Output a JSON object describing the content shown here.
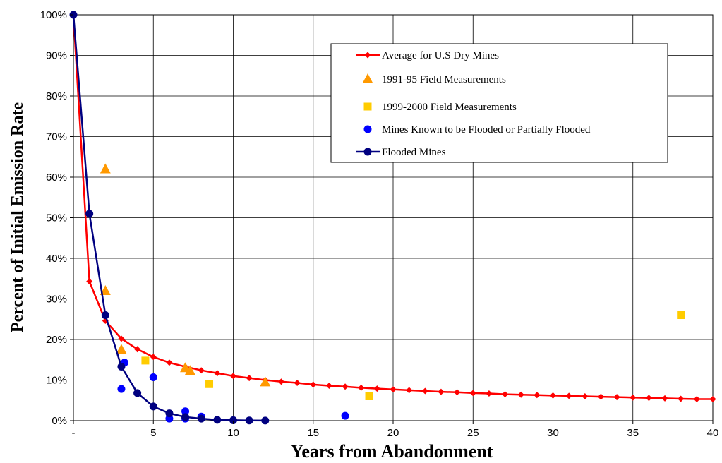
{
  "chart_data": {
    "type": "scatter",
    "xlabel": "Years from Abandonment",
    "ylabel": "Percent of Initial Emission Rate",
    "xlim": [
      0,
      40
    ],
    "ylim": [
      0,
      100
    ],
    "x_ticks": [
      0,
      5,
      10,
      15,
      20,
      25,
      30,
      35,
      40
    ],
    "x_tick_labels": [
      "-",
      "5",
      "10",
      "15",
      "20",
      "25",
      "30",
      "35",
      "40"
    ],
    "y_ticks": [
      0,
      10,
      20,
      30,
      40,
      50,
      60,
      70,
      80,
      90,
      100
    ],
    "y_tick_labels": [
      "0%",
      "10%",
      "20%",
      "30%",
      "40%",
      "50%",
      "60%",
      "70%",
      "80%",
      "90%",
      "100%"
    ],
    "grid": true,
    "legend_position": "top-right",
    "series": [
      {
        "name": "Average for U.S Dry Mines",
        "kind": "line",
        "marker": "diamond",
        "color": "#ff0000",
        "x": [
          0,
          1,
          2,
          3,
          4,
          5,
          6,
          7,
          8,
          9,
          10,
          11,
          12,
          13,
          14,
          15,
          16,
          17,
          18,
          19,
          20,
          21,
          22,
          23,
          24,
          25,
          26,
          27,
          28,
          29,
          30,
          31,
          32,
          33,
          34,
          35,
          36,
          37,
          38,
          39,
          40
        ],
        "y": [
          100,
          34.3,
          24.6,
          20.2,
          17.6,
          15.7,
          14.3,
          13.3,
          12.4,
          11.7,
          11.0,
          10.5,
          10.0,
          9.6,
          9.3,
          8.9,
          8.6,
          8.4,
          8.1,
          7.9,
          7.7,
          7.5,
          7.3,
          7.1,
          7.0,
          6.8,
          6.7,
          6.5,
          6.4,
          6.3,
          6.2,
          6.1,
          6.0,
          5.9,
          5.8,
          5.7,
          5.6,
          5.5,
          5.4,
          5.3,
          5.3
        ]
      },
      {
        "name": "1991-95 Field Measurements",
        "kind": "scatter",
        "marker": "triangle",
        "color": "#ff9900",
        "x": [
          2,
          2,
          3,
          7,
          7.3,
          12
        ],
        "y": [
          62,
          32,
          17.5,
          13,
          12.3,
          9.5
        ]
      },
      {
        "name": "1999-2000 Field Measurements",
        "kind": "scatter",
        "marker": "square",
        "color": "#ffcc00",
        "x": [
          4.5,
          8.5,
          18.5,
          38
        ],
        "y": [
          14.8,
          9.0,
          6.0,
          26
        ]
      },
      {
        "name": "Mines Known to be Flooded or Partially Flooded",
        "kind": "scatter",
        "marker": "circle",
        "color": "#0000ff",
        "x": [
          3,
          3.2,
          5,
          6,
          7,
          7,
          8,
          17
        ],
        "y": [
          7.8,
          14.3,
          10.7,
          0.5,
          2.3,
          0.5,
          1.0,
          1.2
        ]
      },
      {
        "name": "Flooded Mines",
        "kind": "line",
        "marker": "circle",
        "color": "#000080",
        "x": [
          0,
          1,
          2,
          3,
          4,
          5,
          6,
          7,
          8,
          9,
          10,
          11,
          12
        ],
        "y": [
          100,
          51,
          26,
          13.3,
          6.8,
          3.5,
          1.8,
          0.9,
          0.5,
          0.2,
          0.1,
          0.05,
          0.02
        ]
      }
    ]
  }
}
